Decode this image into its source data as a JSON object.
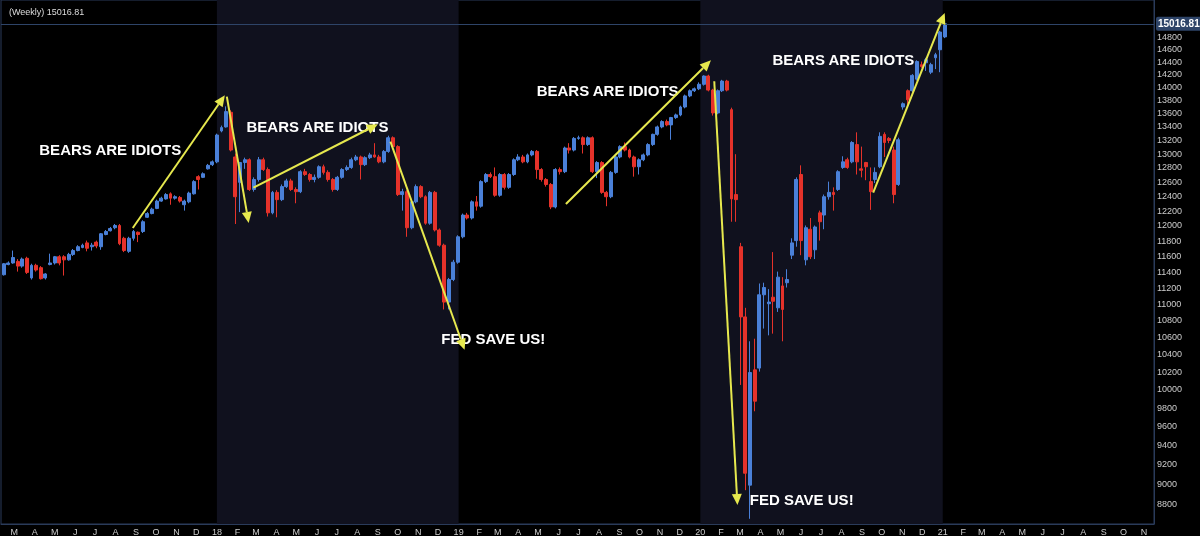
{
  "chart_data": {
    "type": "candlestick",
    "title": "(Weekly) 15016.81",
    "x": [
      "2017-02-13",
      "2017-02-20",
      "2017-02-27",
      "2017-03-06",
      "2017-03-13",
      "2017-03-20",
      "2017-03-27",
      "2017-04-03",
      "2017-04-10",
      "2017-04-17",
      "2017-04-24",
      "2017-05-01",
      "2017-05-08",
      "2017-05-15",
      "2017-05-22",
      "2017-05-29",
      "2017-06-05",
      "2017-06-12",
      "2017-06-19",
      "2017-06-26",
      "2017-07-03",
      "2017-07-10",
      "2017-07-17",
      "2017-07-24",
      "2017-07-31",
      "2017-08-07",
      "2017-08-14",
      "2017-08-21",
      "2017-08-28",
      "2017-09-04",
      "2017-09-11",
      "2017-09-18",
      "2017-09-25",
      "2017-10-02",
      "2017-10-09",
      "2017-10-16",
      "2017-10-23",
      "2017-10-30",
      "2017-11-06",
      "2017-11-13",
      "2017-11-20",
      "2017-11-27",
      "2017-12-04",
      "2017-12-11",
      "2017-12-18",
      "2017-12-25",
      "2018-01-01",
      "2018-01-08",
      "2018-01-15",
      "2018-01-22",
      "2018-01-29",
      "2018-02-05",
      "2018-02-12",
      "2018-02-19",
      "2018-02-26",
      "2018-03-05",
      "2018-03-12",
      "2018-03-19",
      "2018-03-26",
      "2018-04-02",
      "2018-04-09",
      "2018-04-16",
      "2018-04-23",
      "2018-04-30",
      "2018-05-07",
      "2018-05-14",
      "2018-05-21",
      "2018-05-28",
      "2018-06-04",
      "2018-06-11",
      "2018-06-18",
      "2018-06-25",
      "2018-07-02",
      "2018-07-09",
      "2018-07-16",
      "2018-07-23",
      "2018-07-30",
      "2018-08-06",
      "2018-08-13",
      "2018-08-20",
      "2018-08-27",
      "2018-09-03",
      "2018-09-10",
      "2018-09-17",
      "2018-09-24",
      "2018-10-01",
      "2018-10-08",
      "2018-10-15",
      "2018-10-22",
      "2018-10-29",
      "2018-11-05",
      "2018-11-12",
      "2018-11-19",
      "2018-11-26",
      "2018-12-03",
      "2018-12-10",
      "2018-12-17",
      "2018-12-24",
      "2018-12-31",
      "2019-01-07",
      "2019-01-14",
      "2019-01-21",
      "2019-01-28",
      "2019-02-04",
      "2019-02-11",
      "2019-02-18",
      "2019-02-25",
      "2019-03-04",
      "2019-03-11",
      "2019-03-18",
      "2019-03-25",
      "2019-04-01",
      "2019-04-08",
      "2019-04-15",
      "2019-04-22",
      "2019-04-29",
      "2019-05-06",
      "2019-05-13",
      "2019-05-20",
      "2019-05-27",
      "2019-06-03",
      "2019-06-10",
      "2019-06-17",
      "2019-06-24",
      "2019-07-01",
      "2019-07-08",
      "2019-07-15",
      "2019-07-22",
      "2019-07-29",
      "2019-08-05",
      "2019-08-12",
      "2019-08-19",
      "2019-08-26",
      "2019-09-02",
      "2019-09-09",
      "2019-09-16",
      "2019-09-23",
      "2019-09-30",
      "2019-10-07",
      "2019-10-14",
      "2019-10-21",
      "2019-10-28",
      "2019-11-04",
      "2019-11-11",
      "2019-11-18",
      "2019-11-25",
      "2019-12-02",
      "2019-12-09",
      "2019-12-16",
      "2019-12-23",
      "2019-12-30",
      "2020-01-06",
      "2020-01-13",
      "2020-01-20",
      "2020-01-27",
      "2020-02-03",
      "2020-02-10",
      "2020-02-17",
      "2020-02-24",
      "2020-03-02",
      "2020-03-09",
      "2020-03-16",
      "2020-03-23",
      "2020-03-30",
      "2020-04-06",
      "2020-04-13",
      "2020-04-20",
      "2020-04-27",
      "2020-05-04",
      "2020-05-11",
      "2020-05-18",
      "2020-05-25",
      "2020-06-01",
      "2020-06-08",
      "2020-06-15",
      "2020-06-22",
      "2020-06-29",
      "2020-07-06",
      "2020-07-13",
      "2020-07-20",
      "2020-07-27",
      "2020-08-03",
      "2020-08-10",
      "2020-08-17",
      "2020-08-24",
      "2020-08-31",
      "2020-09-07",
      "2020-09-14",
      "2020-09-21",
      "2020-09-28",
      "2020-10-05",
      "2020-10-12",
      "2020-10-19",
      "2020-10-26",
      "2020-11-02",
      "2020-11-09",
      "2020-11-16",
      "2020-11-23",
      "2020-11-30",
      "2020-12-07",
      "2020-12-14",
      "2020-12-21",
      "2020-12-28",
      "2021-01-04"
    ],
    "ohlc": [
      [
        11360,
        11510,
        11350,
        11500
      ],
      [
        11490,
        11530,
        11480,
        11510
      ],
      [
        11510,
        11670,
        11500,
        11580
      ],
      [
        11530,
        11560,
        11400,
        11470
      ],
      [
        11470,
        11580,
        11450,
        11560
      ],
      [
        11570,
        11590,
        11370,
        11390
      ],
      [
        11320,
        11500,
        11300,
        11480
      ],
      [
        11480,
        11500,
        11400,
        11420
      ],
      [
        11450,
        11470,
        11300,
        11310
      ],
      [
        11320,
        11380,
        11300,
        11370
      ],
      [
        11490,
        11630,
        11480,
        11510
      ],
      [
        11510,
        11600,
        11490,
        11590
      ],
      [
        11590,
        11610,
        11480,
        11510
      ],
      [
        11590,
        11610,
        11350,
        11550
      ],
      [
        11550,
        11640,
        11540,
        11620
      ],
      [
        11620,
        11690,
        11600,
        11670
      ],
      [
        11670,
        11740,
        11660,
        11720
      ],
      [
        11710,
        11760,
        11700,
        11740
      ],
      [
        11770,
        11800,
        11660,
        11700
      ],
      [
        11720,
        11770,
        11670,
        11740
      ],
      [
        11780,
        11800,
        11700,
        11730
      ],
      [
        11720,
        11900,
        11680,
        11890
      ],
      [
        11880,
        11940,
        11870,
        11920
      ],
      [
        11930,
        11980,
        11920,
        11960
      ],
      [
        11970,
        12020,
        11950,
        12000
      ],
      [
        12000,
        12020,
        11740,
        11760
      ],
      [
        11830,
        11850,
        11650,
        11670
      ],
      [
        11660,
        11850,
        11640,
        11830
      ],
      [
        11830,
        11940,
        11800,
        11920
      ],
      [
        11910,
        11920,
        11780,
        11880
      ],
      [
        11920,
        12070,
        11900,
        12050
      ],
      [
        12110,
        12180,
        12100,
        12160
      ],
      [
        12160,
        12240,
        12150,
        12220
      ],
      [
        12230,
        12350,
        12220,
        12330
      ],
      [
        12330,
        12390,
        12320,
        12370
      ],
      [
        12360,
        12440,
        12350,
        12420
      ],
      [
        12430,
        12450,
        12280,
        12370
      ],
      [
        12370,
        12410,
        12350,
        12390
      ],
      [
        12380,
        12400,
        12310,
        12330
      ],
      [
        12280,
        12350,
        12200,
        12330
      ],
      [
        12320,
        12460,
        12300,
        12440
      ],
      [
        12430,
        12620,
        12420,
        12600
      ],
      [
        12670,
        12690,
        12490,
        12630
      ],
      [
        12660,
        12730,
        12650,
        12710
      ],
      [
        12780,
        12850,
        12770,
        12830
      ],
      [
        12840,
        12900,
        12820,
        12880
      ],
      [
        12880,
        13290,
        12860,
        13270
      ],
      [
        13330,
        13410,
        13310,
        13380
      ],
      [
        13390,
        13700,
        13380,
        13620
      ],
      [
        13610,
        13640,
        13030,
        13050
      ],
      [
        12950,
        13000,
        12020,
        12390
      ],
      [
        12590,
        12880,
        12180,
        12870
      ],
      [
        12870,
        12940,
        12780,
        12910
      ],
      [
        12910,
        12930,
        12470,
        12490
      ],
      [
        12490,
        12660,
        12460,
        12630
      ],
      [
        12630,
        12950,
        12600,
        12910
      ],
      [
        12910,
        12940,
        12750,
        12770
      ],
      [
        12770,
        12800,
        12120,
        12170
      ],
      [
        12170,
        12470,
        12150,
        12450
      ],
      [
        12450,
        12480,
        12110,
        12350
      ],
      [
        12350,
        12560,
        12330,
        12530
      ],
      [
        12530,
        12640,
        12510,
        12610
      ],
      [
        12610,
        12640,
        12470,
        12490
      ],
      [
        12490,
        12520,
        12300,
        12460
      ],
      [
        12460,
        12760,
        12440,
        12740
      ],
      [
        12740,
        12780,
        12680,
        12700
      ],
      [
        12700,
        12720,
        12600,
        12630
      ],
      [
        12630,
        12700,
        12590,
        12660
      ],
      [
        12660,
        12830,
        12640,
        12810
      ],
      [
        12810,
        12840,
        12700,
        12730
      ],
      [
        12730,
        12760,
        12600,
        12630
      ],
      [
        12630,
        12650,
        12460,
        12490
      ],
      [
        12490,
        12680,
        12470,
        12660
      ],
      [
        12660,
        12790,
        12640,
        12770
      ],
      [
        12770,
        12830,
        12750,
        12800
      ],
      [
        12800,
        12940,
        12780,
        12910
      ],
      [
        12910,
        12980,
        12890,
        12950
      ],
      [
        12950,
        12970,
        12630,
        12840
      ],
      [
        12840,
        12960,
        12820,
        12940
      ],
      [
        12940,
        13010,
        12920,
        12980
      ],
      [
        12980,
        13150,
        12940,
        12950
      ],
      [
        12950,
        12980,
        12860,
        12880
      ],
      [
        12880,
        13050,
        12860,
        13030
      ],
      [
        13030,
        13260,
        13010,
        13230
      ],
      [
        13230,
        13250,
        13080,
        13100
      ],
      [
        13100,
        13120,
        12400,
        12420
      ],
      [
        12420,
        12500,
        12200,
        12460
      ],
      [
        12460,
        12480,
        11850,
        11970
      ],
      [
        11970,
        12340,
        11950,
        12320
      ],
      [
        12320,
        12560,
        12300,
        12530
      ],
      [
        12530,
        12550,
        12370,
        12390
      ],
      [
        12390,
        12410,
        12010,
        12030
      ],
      [
        12030,
        12470,
        12010,
        12450
      ],
      [
        12450,
        12470,
        11920,
        11940
      ],
      [
        11940,
        11960,
        11720,
        11740
      ],
      [
        11740,
        11760,
        10930,
        11020
      ],
      [
        11020,
        11320,
        10930,
        11300
      ],
      [
        11300,
        11550,
        11280,
        11520
      ],
      [
        11520,
        11870,
        11500,
        11850
      ],
      [
        11850,
        12160,
        11830,
        12140
      ],
      [
        12140,
        12170,
        12080,
        12100
      ],
      [
        12100,
        12340,
        12080,
        12320
      ],
      [
        12320,
        12400,
        12200,
        12260
      ],
      [
        12260,
        12620,
        12240,
        12600
      ],
      [
        12600,
        12720,
        12580,
        12700
      ],
      [
        12700,
        12730,
        12650,
        12670
      ],
      [
        12670,
        12800,
        12390,
        12410
      ],
      [
        12410,
        12720,
        12390,
        12700
      ],
      [
        12700,
        12720,
        12490,
        12520
      ],
      [
        12520,
        12720,
        12500,
        12700
      ],
      [
        12700,
        12930,
        12680,
        12910
      ],
      [
        12910,
        12990,
        12890,
        12950
      ],
      [
        12950,
        12980,
        12860,
        12880
      ],
      [
        12880,
        13000,
        12860,
        12980
      ],
      [
        12980,
        13050,
        12960,
        13030
      ],
      [
        13030,
        13050,
        12640,
        12770
      ],
      [
        12770,
        12790,
        12600,
        12630
      ],
      [
        12630,
        12650,
        12530,
        12560
      ],
      [
        12560,
        12580,
        12220,
        12250
      ],
      [
        12250,
        12790,
        12230,
        12770
      ],
      [
        12770,
        12800,
        12700,
        12740
      ],
      [
        12740,
        13100,
        12720,
        13080
      ],
      [
        13080,
        13150,
        13000,
        13050
      ],
      [
        13050,
        13240,
        13030,
        13220
      ],
      [
        13220,
        13260,
        13200,
        13230
      ],
      [
        13230,
        13250,
        13000,
        13130
      ],
      [
        13130,
        13250,
        13110,
        13230
      ],
      [
        13230,
        13250,
        12720,
        12740
      ],
      [
        12740,
        12890,
        12650,
        12870
      ],
      [
        12870,
        12890,
        12430,
        12450
      ],
      [
        12450,
        12470,
        12260,
        12390
      ],
      [
        12390,
        12750,
        12370,
        12730
      ],
      [
        12730,
        12970,
        12710,
        12950
      ],
      [
        12950,
        13120,
        12930,
        13100
      ],
      [
        13100,
        13160,
        13030,
        13050
      ],
      [
        13050,
        13070,
        12930,
        12950
      ],
      [
        12950,
        12970,
        12670,
        12810
      ],
      [
        12810,
        12930,
        12700,
        12910
      ],
      [
        12910,
        13000,
        12890,
        12980
      ],
      [
        12980,
        13150,
        12960,
        13130
      ],
      [
        13130,
        13290,
        13110,
        13280
      ],
      [
        13280,
        13410,
        13260,
        13390
      ],
      [
        13390,
        13490,
        13370,
        13470
      ],
      [
        13470,
        13500,
        13400,
        13420
      ],
      [
        13420,
        13540,
        13200,
        13530
      ],
      [
        13530,
        13590,
        13510,
        13570
      ],
      [
        13570,
        13710,
        13550,
        13690
      ],
      [
        13690,
        13880,
        13670,
        13860
      ],
      [
        13860,
        13960,
        13840,
        13940
      ],
      [
        13940,
        13990,
        13920,
        13970
      ],
      [
        13970,
        14070,
        13950,
        14040
      ],
      [
        14040,
        14180,
        14020,
        14170
      ],
      [
        14170,
        14190,
        13930,
        13950
      ],
      [
        13950,
        13970,
        13560,
        13600
      ],
      [
        13600,
        13960,
        13580,
        13940
      ],
      [
        13940,
        14110,
        13920,
        14090
      ],
      [
        14090,
        14110,
        13930,
        13950
      ],
      [
        13650,
        13680,
        12050,
        12360
      ],
      [
        12420,
        12990,
        12050,
        12350
      ],
      [
        11720,
        11770,
        10050,
        10840
      ],
      [
        10840,
        10950,
        8940,
        9110
      ],
      [
        8990,
        10550,
        8660,
        10190
      ],
      [
        10220,
        10580,
        9760,
        9870
      ],
      [
        10240,
        11250,
        10200,
        11110
      ],
      [
        11110,
        11260,
        10700,
        11200
      ],
      [
        11000,
        11180,
        10620,
        11020
      ],
      [
        11080,
        11650,
        10640,
        11030
      ],
      [
        10950,
        11400,
        10900,
        11330
      ],
      [
        11220,
        11330,
        10550,
        10930
      ],
      [
        11260,
        11430,
        11200,
        11300
      ],
      [
        11610,
        11830,
        11560,
        11770
      ],
      [
        11800,
        12660,
        11720,
        12630
      ],
      [
        12700,
        12830,
        11610,
        11800
      ],
      [
        11550,
        12000,
        11480,
        11970
      ],
      [
        11950,
        12100,
        11560,
        11590
      ],
      [
        11680,
        12000,
        11560,
        11980
      ],
      [
        12170,
        12200,
        11800,
        12050
      ],
      [
        12140,
        12420,
        11950,
        12390
      ],
      [
        12390,
        12600,
        12350,
        12450
      ],
      [
        12450,
        12520,
        12200,
        12420
      ],
      [
        12490,
        12760,
        12470,
        12740
      ],
      [
        12800,
        12960,
        12780,
        12880
      ],
      [
        12910,
        12940,
        12780,
        12800
      ],
      [
        12880,
        13180,
        12860,
        13160
      ],
      [
        13130,
        13310,
        12700,
        12880
      ],
      [
        12780,
        13100,
        12660,
        12760
      ],
      [
        12870,
        12880,
        12620,
        12810
      ],
      [
        12600,
        12800,
        12210,
        12460
      ],
      [
        12630,
        12800,
        12580,
        12730
      ],
      [
        12810,
        13310,
        12790,
        13250
      ],
      [
        13280,
        13310,
        12950,
        13160
      ],
      [
        13220,
        13240,
        13150,
        13190
      ],
      [
        13050,
        13100,
        12300,
        12420
      ],
      [
        12560,
        13230,
        12540,
        13200
      ],
      [
        13690,
        13760,
        13650,
        13740
      ],
      [
        13940,
        13960,
        13700,
        13800
      ],
      [
        13940,
        14200,
        13920,
        14180
      ],
      [
        14120,
        14420,
        14100,
        14400
      ],
      [
        14350,
        14400,
        14300,
        14320
      ],
      [
        14380,
        14460,
        14250,
        14430
      ],
      [
        14230,
        14380,
        14200,
        14350
      ],
      [
        14460,
        14540,
        14280,
        14510
      ],
      [
        14590,
        14900,
        14230,
        14880
      ],
      [
        14800,
        15030,
        14780,
        15016.81
      ]
    ],
    "colors": [
      "#4a80d8",
      "#4a80d8",
      "#4a80d8",
      "#e5322a",
      "#4a80d8",
      "#e5322a",
      "#4a80d8",
      "#e5322a",
      "#e5322a",
      "#4a80d8",
      "#4a80d8",
      "#4a80d8",
      "#e5322a",
      "#e5322a",
      "#4a80d8",
      "#4a80d8",
      "#4a80d8",
      "#4a80d8",
      "#e5322a",
      "#4a80d8",
      "#e5322a",
      "#4a80d8",
      "#4a80d8",
      "#4a80d8",
      "#4a80d8",
      "#e5322a",
      "#e5322a",
      "#4a80d8",
      "#4a80d8",
      "#e5322a",
      "#4a80d8",
      "#4a80d8",
      "#4a80d8",
      "#4a80d8",
      "#4a80d8",
      "#4a80d8",
      "#e5322a",
      "#4a80d8",
      "#e5322a",
      "#4a80d8",
      "#4a80d8",
      "#4a80d8",
      "#e5322a",
      "#4a80d8",
      "#4a80d8",
      "#4a80d8",
      "#4a80d8",
      "#4a80d8",
      "#4a80d8",
      "#e5322a",
      "#e5322a",
      "#4a80d8",
      "#4a80d8",
      "#e5322a",
      "#4a80d8",
      "#4a80d8",
      "#e5322a",
      "#e5322a",
      "#4a80d8",
      "#e5322a",
      "#4a80d8",
      "#4a80d8",
      "#e5322a",
      "#e5322a",
      "#4a80d8",
      "#e5322a",
      "#e5322a",
      "#4a80d8",
      "#4a80d8",
      "#e5322a",
      "#e5322a",
      "#e5322a",
      "#4a80d8",
      "#4a80d8",
      "#4a80d8",
      "#4a80d8",
      "#4a80d8",
      "#e5322a",
      "#4a80d8",
      "#4a80d8",
      "#e5322a",
      "#e5322a",
      "#4a80d8",
      "#4a80d8",
      "#e5322a",
      "#e5322a",
      "#4a80d8",
      "#e5322a",
      "#4a80d8",
      "#4a80d8",
      "#e5322a",
      "#e5322a",
      "#4a80d8",
      "#e5322a",
      "#e5322a",
      "#e5322a",
      "#4a80d8",
      "#4a80d8",
      "#4a80d8",
      "#4a80d8",
      "#e5322a",
      "#4a80d8",
      "#e5322a",
      "#4a80d8",
      "#4a80d8",
      "#e5322a",
      "#e5322a",
      "#4a80d8",
      "#e5322a",
      "#4a80d8",
      "#4a80d8",
      "#4a80d8",
      "#e5322a",
      "#4a80d8",
      "#4a80d8",
      "#e5322a",
      "#e5322a",
      "#e5322a",
      "#e5322a",
      "#4a80d8",
      "#e5322a",
      "#4a80d8",
      "#e5322a",
      "#4a80d8",
      "#4a80d8",
      "#e5322a",
      "#4a80d8",
      "#e5322a",
      "#4a80d8",
      "#e5322a",
      "#e5322a",
      "#4a80d8",
      "#4a80d8",
      "#4a80d8",
      "#e5322a",
      "#e5322a",
      "#e5322a",
      "#4a80d8",
      "#4a80d8",
      "#4a80d8",
      "#4a80d8",
      "#4a80d8",
      "#4a80d8",
      "#e5322a",
      "#4a80d8",
      "#4a80d8",
      "#4a80d8",
      "#4a80d8",
      "#4a80d8",
      "#4a80d8",
      "#4a80d8",
      "#4a80d8",
      "#e5322a",
      "#e5322a",
      "#4a80d8",
      "#4a80d8",
      "#e5322a",
      "#e5322a",
      "#e5322a",
      "#e5322a",
      "#e5322a",
      "#4a80d8",
      "#e5322a",
      "#4a80d8",
      "#4a80d8",
      "#4a80d8",
      "#e5322a",
      "#4a80d8",
      "#e5322a",
      "#4a80d8",
      "#4a80d8",
      "#4a80d8",
      "#e5322a",
      "#4a80d8",
      "#e5322a",
      "#4a80d8",
      "#e5322a",
      "#4a80d8",
      "#4a80d8",
      "#e5322a",
      "#4a80d8",
      "#4a80d8",
      "#e5322a",
      "#4a80d8",
      "#e5322a",
      "#e5322a",
      "#e5322a",
      "#e5322a",
      "#4a80d8",
      "#4a80d8",
      "#e5322a",
      "#e5322a",
      "#e5322a",
      "#4a80d8",
      "#4a80d8",
      "#e5322a",
      "#4a80d8",
      "#4a80d8",
      "#e5322a",
      "#4a80d8",
      "#4a80d8",
      "#4a80d8",
      "#4a80d8",
      "#4a80d8"
    ],
    "xlim": [
      "2017-02-09",
      "2021-11-16"
    ],
    "xticks": [
      {
        "value": "2017-03-01",
        "label": "M"
      },
      {
        "value": "2017-04-01",
        "label": "A"
      },
      {
        "value": "2017-05-01",
        "label": "M"
      },
      {
        "value": "2017-06-01",
        "label": "J"
      },
      {
        "value": "2017-07-01",
        "label": "J"
      },
      {
        "value": "2017-08-01",
        "label": "A"
      },
      {
        "value": "2017-09-01",
        "label": "S"
      },
      {
        "value": "2017-10-01",
        "label": "O"
      },
      {
        "value": "2017-11-01",
        "label": "N"
      },
      {
        "value": "2017-12-01",
        "label": "D"
      },
      {
        "value": "2018-01-01",
        "label": "18"
      },
      {
        "value": "2018-02-01",
        "label": "F"
      },
      {
        "value": "2018-03-01",
        "label": "M"
      },
      {
        "value": "2018-04-01",
        "label": "A"
      },
      {
        "value": "2018-05-01",
        "label": "M"
      },
      {
        "value": "2018-06-01",
        "label": "J"
      },
      {
        "value": "2018-07-01",
        "label": "J"
      },
      {
        "value": "2018-08-01",
        "label": "A"
      },
      {
        "value": "2018-09-01",
        "label": "S"
      },
      {
        "value": "2018-10-01",
        "label": "O"
      },
      {
        "value": "2018-11-01",
        "label": "N"
      },
      {
        "value": "2018-12-01",
        "label": "D"
      },
      {
        "value": "2019-01-01",
        "label": "19"
      },
      {
        "value": "2019-02-01",
        "label": "F"
      },
      {
        "value": "2019-03-01",
        "label": "M"
      },
      {
        "value": "2019-04-01",
        "label": "A"
      },
      {
        "value": "2019-05-01",
        "label": "M"
      },
      {
        "value": "2019-06-01",
        "label": "J"
      },
      {
        "value": "2019-07-01",
        "label": "J"
      },
      {
        "value": "2019-08-01",
        "label": "A"
      },
      {
        "value": "2019-09-01",
        "label": "S"
      },
      {
        "value": "2019-10-01",
        "label": "O"
      },
      {
        "value": "2019-11-01",
        "label": "N"
      },
      {
        "value": "2019-12-01",
        "label": "D"
      },
      {
        "value": "2020-01-01",
        "label": "20"
      },
      {
        "value": "2020-02-01",
        "label": "F"
      },
      {
        "value": "2020-03-01",
        "label": "M"
      },
      {
        "value": "2020-04-01",
        "label": "A"
      },
      {
        "value": "2020-05-01",
        "label": "M"
      },
      {
        "value": "2020-06-01",
        "label": "J"
      },
      {
        "value": "2020-07-01",
        "label": "J"
      },
      {
        "value": "2020-08-01",
        "label": "A"
      },
      {
        "value": "2020-09-01",
        "label": "S"
      },
      {
        "value": "2020-10-01",
        "label": "O"
      },
      {
        "value": "2020-11-01",
        "label": "N"
      },
      {
        "value": "2020-12-01",
        "label": "D"
      },
      {
        "value": "2021-01-01",
        "label": "21"
      },
      {
        "value": "2021-02-01",
        "label": "F"
      },
      {
        "value": "2021-03-01",
        "label": "M"
      },
      {
        "value": "2021-04-01",
        "label": "A"
      },
      {
        "value": "2021-05-01",
        "label": "M"
      },
      {
        "value": "2021-06-01",
        "label": "J"
      },
      {
        "value": "2021-07-01",
        "label": "J"
      },
      {
        "value": "2021-08-01",
        "label": "A"
      },
      {
        "value": "2021-09-01",
        "label": "S"
      },
      {
        "value": "2021-10-01",
        "label": "O"
      },
      {
        "value": "2021-11-01",
        "label": "N"
      }
    ],
    "ylim": [
      8610,
      15420
    ],
    "log": true,
    "yticks": [
      8800,
      9000,
      9200,
      9400,
      9600,
      9800,
      10000,
      10200,
      10400,
      10600,
      10800,
      11000,
      11200,
      11400,
      11600,
      11800,
      12000,
      12200,
      12400,
      12600,
      12800,
      13000,
      13200,
      13400,
      13600,
      13800,
      14000,
      14200,
      14400,
      14600,
      14800
    ],
    "ref_lines": [
      {
        "axis": "y",
        "value": 15016.81,
        "label": "15016.81",
        "color": "#2e4468"
      }
    ],
    "bands": [
      {
        "axis": "x",
        "from": "2018-01-01",
        "to": "2019-01-01",
        "color": "#10111e"
      },
      {
        "axis": "x",
        "from": "2020-01-01",
        "to": "2021-01-01",
        "color": "#10111e"
      }
    ],
    "annotations": [
      "BEARS ARE IDIOTS",
      {
        "text": "BEARS ARE IDIOTS",
        "x": "2018-09-17",
        "y": 13260
      },
      {
        "text": "FED SAVE US!",
        "x": "2018-12-24",
        "y": 10930
      },
      "BEARS ARE IDIOTS",
      "FED SAVE US!",
      "BEARS ARE IDIOTS"
    ]
  }
}
